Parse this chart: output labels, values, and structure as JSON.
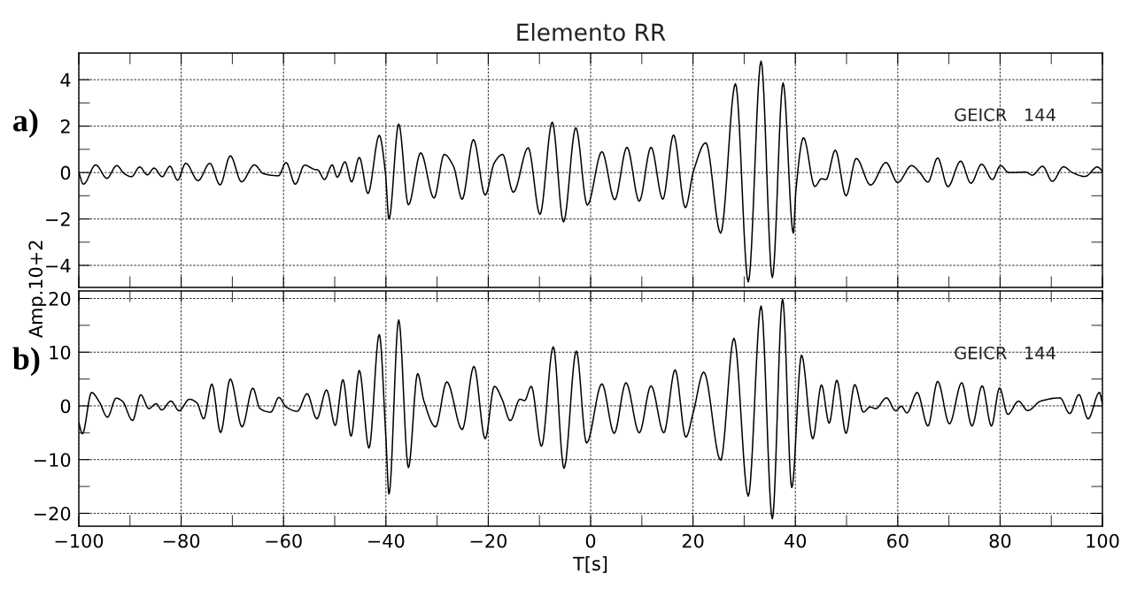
{
  "chart_data": [
    {
      "type": "line",
      "title": "Elemento RR",
      "ylabel": "Amp.10+2",
      "annotations": [
        "a)",
        "GEICR   144"
      ],
      "tick_labels": "y",
      "grid": true,
      "line_style": "solid",
      "xlim": [
        -100,
        100
      ],
      "xticks": [
        -100,
        -80,
        -60,
        -40,
        -20,
        0,
        20,
        40,
        60,
        80,
        100
      ],
      "ylim": [
        -4.95,
        5.15
      ],
      "yticks": [
        -4,
        -2,
        0,
        2,
        4
      ],
      "series": [
        {
          "color": "#000000",
          "x": [
            -100,
            -99.1,
            -96.7,
            -94.5,
            -92.6,
            -91.1,
            -89.7,
            -88.1,
            -86.6,
            -85.3,
            -83.7,
            -82.2,
            -80.7,
            -79.1,
            -76.7,
            -74.4,
            -72.4,
            -70.4,
            -68.2,
            -65.7,
            -63.9,
            -61,
            -59.5,
            -57.7,
            -55.9,
            -54.0,
            -53.3,
            -52,
            -50.5,
            -49.5,
            -48,
            -46.7,
            -45.2,
            -43.5,
            -41.3,
            -40.1,
            -39.4,
            -37.5,
            -35.6,
            -33.2,
            -30.6,
            -28.6,
            -26.8,
            -25.1,
            -22.9,
            -20.6,
            -18.8,
            -17.2,
            -15.1,
            -12.2,
            -9.9,
            -7.5,
            -5.3,
            -2.9,
            -0.65,
            2.2,
            4.7,
            7.1,
            9.5,
            11.8,
            14.1,
            16.2,
            18.5,
            20.1,
            22.5,
            25.4,
            28.3,
            30.8,
            33.3,
            35.5,
            37.6,
            39.6,
            40.1,
            41.6,
            43.8,
            45.1,
            46,
            47.8,
            49.9,
            51.9,
            54.7,
            57.7,
            60,
            62.7,
            64.3,
            65.9,
            67.8,
            69.8,
            72.3,
            74.3,
            76.4,
            78.5,
            80.1,
            81.7,
            85,
            86.3,
            88.3,
            90.2,
            92.4,
            94.1,
            96.6,
            99,
            100
          ],
          "values": [
            0,
            -0.5,
            0.33,
            -0.25,
            0.3,
            -0.05,
            -0.18,
            0.24,
            -0.1,
            0.19,
            -0.18,
            0.27,
            -0.33,
            0.4,
            -0.35,
            0.4,
            -0.53,
            0.72,
            -0.4,
            0.33,
            -0.05,
            -0.14,
            0.43,
            -0.5,
            0.32,
            0.14,
            0.11,
            -0.3,
            0.33,
            -0.2,
            0.46,
            -0.4,
            0.65,
            -0.9,
            1.6,
            0,
            -2.0,
            2.09,
            -1.39,
            0.85,
            -1.1,
            0.78,
            0.27,
            -1.15,
            1.42,
            -0.97,
            0.43,
            0.78,
            -0.85,
            1.07,
            -1.8,
            2.17,
            -2.13,
            1.93,
            -1.4,
            0.9,
            -1.17,
            1.09,
            -1.23,
            1.09,
            -1.15,
            1.62,
            -1.51,
            0.06,
            1.28,
            -2.61,
            3.83,
            -4.71,
            4.8,
            -4.52,
            3.86,
            -2.61,
            -0.8,
            1.5,
            -0.6,
            -0.27,
            -0.3,
            0.96,
            -1.0,
            0.61,
            -0.54,
            0.43,
            -0.43,
            0.3,
            0,
            -0.41,
            0.63,
            -0.61,
            0.49,
            -0.46,
            0.36,
            -0.3,
            0.3,
            0,
            0.02,
            -0.11,
            0.27,
            -0.38,
            0.25,
            0,
            -0.17,
            0.24,
            0.06
          ]
        }
      ]
    },
    {
      "type": "line",
      "xlabel": "T[s]",
      "annotations": [
        "b)",
        "GEICR   144"
      ],
      "grid": true,
      "line_style": "solid",
      "xlim": [
        -100,
        100
      ],
      "xticks": [
        -100,
        -80,
        -60,
        -40,
        -20,
        0,
        20,
        40,
        60,
        80,
        100
      ],
      "ylim": [
        -22.4,
        21.4
      ],
      "yticks": [
        -20,
        -10,
        0,
        10,
        20
      ],
      "series": [
        {
          "color": "#000000",
          "x": [
            -100,
            -99.3,
            -97.5,
            -96,
            -94.4,
            -92.7,
            -91.5,
            -89.5,
            -87.9,
            -86.3,
            -84.9,
            -83.8,
            -82,
            -80.4,
            -78.4,
            -76.9,
            -75.6,
            -74,
            -72.3,
            -70.4,
            -68.1,
            -66.0,
            -64.6,
            -62.5,
            -60.9,
            -59.5,
            -57.3,
            -55.4,
            -53.5,
            -51.6,
            -49.9,
            -48.4,
            -46.8,
            -45.2,
            -43.3,
            -41.3,
            -40.0,
            -39.4,
            -37.5,
            -35.6,
            -33.8,
            -32.6,
            -30.3,
            -28.1,
            -25.1,
            -22.8,
            -20.6,
            -18.8,
            -17.3,
            -15.7,
            -13.8,
            -12.9,
            -11.6,
            -9.6,
            -7.3,
            -5.2,
            -2.8,
            -0.8,
            2.2,
            4.6,
            6.9,
            9.5,
            11.8,
            14.3,
            16.5,
            18.6,
            20.1,
            22.1,
            25.4,
            28,
            30.8,
            33.3,
            35.5,
            37.5,
            39.3,
            41.2,
            43.4,
            45.1,
            46.6,
            48.1,
            49.9,
            51.6,
            53.3,
            54.6,
            55.7,
            57.8,
            59.6,
            60.7,
            61.8,
            63.8,
            65.9,
            67.8,
            70.1,
            72.5,
            74.5,
            76.5,
            78.3,
            79.9,
            81.5,
            83.6,
            85.4,
            87.9,
            91.7,
            93.6,
            95.4,
            97.2,
            99.4,
            100
          ],
          "values": [
            -3.1,
            -5.2,
            2.5,
            0.75,
            -2.1,
            1.44,
            0.9,
            -2.7,
            2.06,
            -0.5,
            0.4,
            -0.75,
            0.9,
            -0.9,
            1.24,
            0.55,
            -2.4,
            4.05,
            -4.95,
            5.0,
            -3.9,
            3.3,
            -0.5,
            -1.17,
            1.58,
            -0.2,
            -1.0,
            2.27,
            -2.4,
            2.96,
            -3.64,
            4.88,
            -5.64,
            6.6,
            -7.84,
            13.3,
            -6,
            -16.4,
            16.0,
            -11.5,
            6.0,
            1.0,
            -3.9,
            4.47,
            -4.4,
            7.35,
            -6.1,
            3.64,
            1.24,
            -2.75,
            1.24,
            1.0,
            3.64,
            -7.5,
            11.0,
            -11.6,
            10.2,
            -6.9,
            4.1,
            -5.1,
            4.3,
            -5.0,
            3.74,
            -5.0,
            6.7,
            -5.8,
            -1.0,
            6.3,
            -10.1,
            12.6,
            -16.8,
            18.6,
            -21.0,
            19.9,
            -15.2,
            9.46,
            -6.1,
            3.9,
            -3.2,
            4.76,
            -5.1,
            3.95,
            -1.16,
            -0.2,
            -0.5,
            1.5,
            -0.9,
            -0.07,
            -1.3,
            2.5,
            -3.74,
            4.56,
            -3.33,
            4.3,
            -3.74,
            3.74,
            -3.74,
            3.33,
            -1.56,
            0.88,
            -0.88,
            0.88,
            1.5,
            -1.43,
            2.1,
            -2.4,
            2.5,
            0.34
          ]
        }
      ]
    }
  ]
}
